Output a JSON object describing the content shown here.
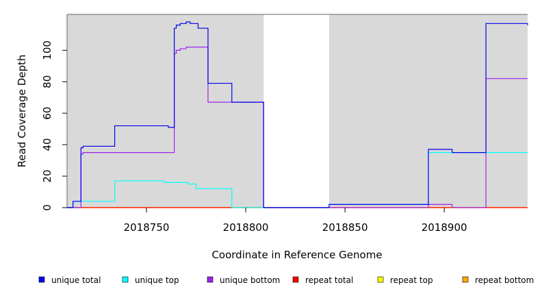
{
  "chart_data": {
    "type": "line",
    "title": "",
    "xlabel": "Coordinate in Reference Genome",
    "ylabel": "Read Coverage Depth",
    "xlim": [
      2018710,
      2018942
    ],
    "ylim": [
      0,
      118
    ],
    "x_ticks": [
      2018750,
      2018800,
      2018850,
      2018900
    ],
    "x_tick_labels": [
      "2018750",
      "2018800",
      "2018850",
      "2018900"
    ],
    "y_ticks": [
      0,
      20,
      40,
      60,
      80,
      100
    ],
    "y_tick_labels": [
      "0",
      "20",
      "40",
      "60",
      "80",
      "100"
    ],
    "grid": false,
    "background": "#d9d9d9",
    "gap_regions": [
      [
        2018809,
        2018842
      ]
    ],
    "legend_position": "bottom",
    "series": [
      {
        "name": "unique total",
        "color": "#0000ee",
        "points": [
          [
            2018710,
            0
          ],
          [
            2018713,
            0
          ],
          [
            2018713,
            4
          ],
          [
            2018717,
            4
          ],
          [
            2018717,
            38
          ],
          [
            2018718,
            38
          ],
          [
            2018718,
            39
          ],
          [
            2018734,
            39
          ],
          [
            2018734,
            52
          ],
          [
            2018761,
            52
          ],
          [
            2018761,
            51
          ],
          [
            2018764,
            51
          ],
          [
            2018764,
            114
          ],
          [
            2018765,
            114
          ],
          [
            2018765,
            116
          ],
          [
            2018767,
            116
          ],
          [
            2018767,
            117
          ],
          [
            2018770,
            117
          ],
          [
            2018770,
            118
          ],
          [
            2018772,
            118
          ],
          [
            2018772,
            117
          ],
          [
            2018776,
            117
          ],
          [
            2018776,
            114
          ],
          [
            2018781,
            114
          ],
          [
            2018781,
            79
          ],
          [
            2018793,
            79
          ],
          [
            2018793,
            67
          ],
          [
            2018809,
            67
          ],
          [
            2018809,
            0
          ],
          [
            2018842,
            0
          ],
          [
            2018842,
            2
          ],
          [
            2018892,
            2
          ],
          [
            2018892,
            37
          ],
          [
            2018904,
            37
          ],
          [
            2018904,
            35
          ],
          [
            2018921,
            35
          ],
          [
            2018921,
            117
          ],
          [
            2018942,
            117
          ],
          [
            2018942,
            116
          ]
        ]
      },
      {
        "name": "unique top",
        "color": "#00ffff",
        "points": [
          [
            2018710,
            0
          ],
          [
            2018713,
            0
          ],
          [
            2018713,
            4
          ],
          [
            2018734,
            4
          ],
          [
            2018734,
            17
          ],
          [
            2018759,
            17
          ],
          [
            2018759,
            16
          ],
          [
            2018771,
            16
          ],
          [
            2018771,
            15
          ],
          [
            2018775,
            15
          ],
          [
            2018775,
            12
          ],
          [
            2018793,
            12
          ],
          [
            2018793,
            0
          ],
          [
            2018809,
            0
          ],
          [
            2018809,
            0
          ],
          [
            2018842,
            0
          ],
          [
            2018842,
            2
          ],
          [
            2018892,
            2
          ],
          [
            2018892,
            35
          ],
          [
            2018942,
            35
          ]
        ]
      },
      {
        "name": "unique bottom",
        "color": "#a020f0",
        "points": [
          [
            2018710,
            0
          ],
          [
            2018717,
            0
          ],
          [
            2018717,
            34
          ],
          [
            2018718,
            34
          ],
          [
            2018718,
            35
          ],
          [
            2018764,
            35
          ],
          [
            2018764,
            98
          ],
          [
            2018765,
            98
          ],
          [
            2018765,
            100
          ],
          [
            2018767,
            100
          ],
          [
            2018767,
            101
          ],
          [
            2018770,
            101
          ],
          [
            2018770,
            102
          ],
          [
            2018781,
            102
          ],
          [
            2018781,
            67
          ],
          [
            2018809,
            67
          ],
          [
            2018809,
            0
          ],
          [
            2018892,
            0
          ],
          [
            2018892,
            2
          ],
          [
            2018904,
            2
          ],
          [
            2018904,
            0
          ],
          [
            2018921,
            0
          ],
          [
            2018921,
            82
          ],
          [
            2018942,
            82
          ]
        ]
      },
      {
        "name": "repeat total",
        "color": "#ff0000",
        "points": [
          [
            2018710,
            0
          ],
          [
            2018942,
            0
          ]
        ]
      },
      {
        "name": "repeat top",
        "color": "#ffff00",
        "points": [
          [
            2018710,
            0
          ],
          [
            2018942,
            0
          ]
        ]
      },
      {
        "name": "repeat bottom",
        "color": "#ffa500",
        "points": [
          [
            2018710,
            0
          ],
          [
            2018942,
            0
          ]
        ]
      }
    ]
  }
}
